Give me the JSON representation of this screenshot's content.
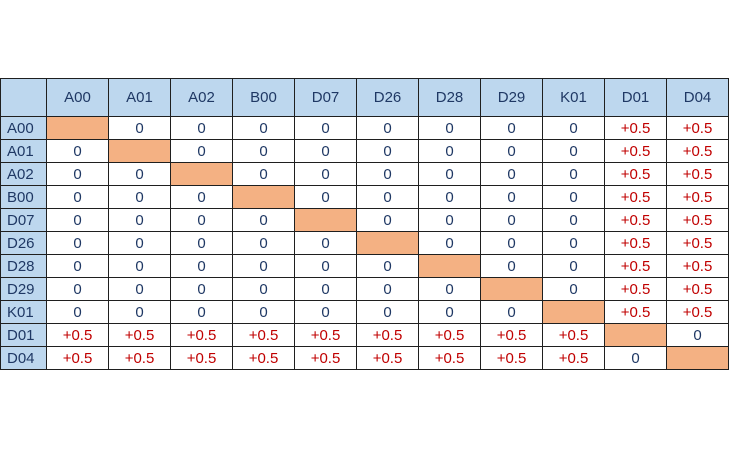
{
  "matrix": {
    "labels": [
      "A00",
      "A01",
      "A02",
      "B00",
      "D07",
      "D26",
      "D28",
      "D29",
      "K01",
      "D01",
      "D04"
    ],
    "rows": [
      [
        "",
        "0",
        "0",
        "0",
        "0",
        "0",
        "0",
        "0",
        "0",
        "+0.5",
        "+0.5"
      ],
      [
        "0",
        "",
        "0",
        "0",
        "0",
        "0",
        "0",
        "0",
        "0",
        "+0.5",
        "+0.5"
      ],
      [
        "0",
        "0",
        "",
        "0",
        "0",
        "0",
        "0",
        "0",
        "0",
        "+0.5",
        "+0.5"
      ],
      [
        "0",
        "0",
        "0",
        "",
        "0",
        "0",
        "0",
        "0",
        "0",
        "+0.5",
        "+0.5"
      ],
      [
        "0",
        "0",
        "0",
        "0",
        "",
        "0",
        "0",
        "0",
        "0",
        "+0.5",
        "+0.5"
      ],
      [
        "0",
        "0",
        "0",
        "0",
        "0",
        "",
        "0",
        "0",
        "0",
        "+0.5",
        "+0.5"
      ],
      [
        "0",
        "0",
        "0",
        "0",
        "0",
        "0",
        "",
        "0",
        "0",
        "+0.5",
        "+0.5"
      ],
      [
        "0",
        "0",
        "0",
        "0",
        "0",
        "0",
        "0",
        "",
        "0",
        "+0.5",
        "+0.5"
      ],
      [
        "0",
        "0",
        "0",
        "0",
        "0",
        "0",
        "0",
        "0",
        "",
        "+0.5",
        "+0.5"
      ],
      [
        "+0.5",
        "+0.5",
        "+0.5",
        "+0.5",
        "+0.5",
        "+0.5",
        "+0.5",
        "+0.5",
        "+0.5",
        "",
        "0"
      ],
      [
        "+0.5",
        "+0.5",
        "+0.5",
        "+0.5",
        "+0.5",
        "+0.5",
        "+0.5",
        "+0.5",
        "+0.5",
        "0",
        ""
      ]
    ],
    "colors": {
      "header_bg": "#bdd7ee",
      "diagonal_fill": "#f4b183",
      "zero_text": "#1f3864",
      "positive_text": "#c00000",
      "grid_line": "#1f1f1f"
    }
  }
}
